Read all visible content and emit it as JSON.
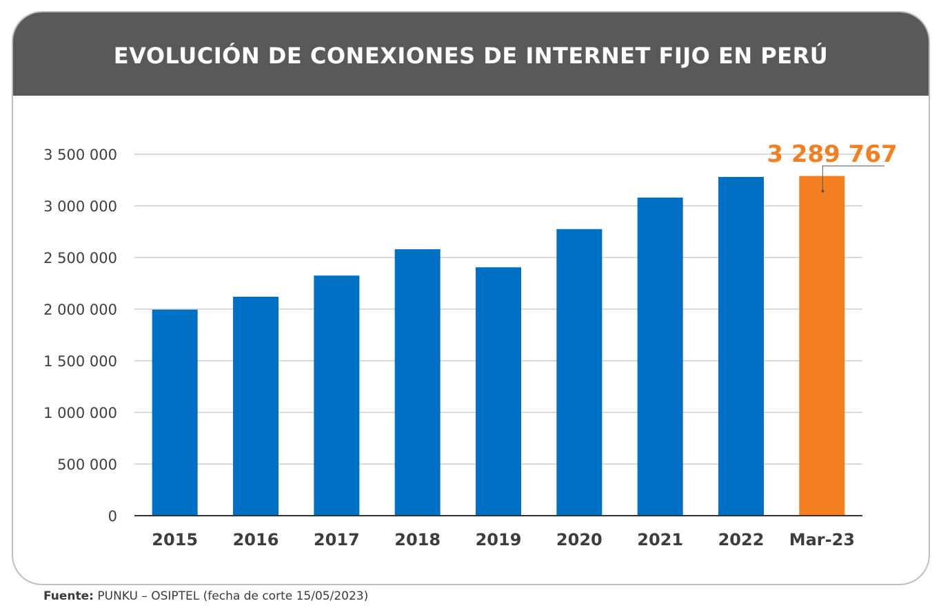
{
  "header": {
    "title": "EVOLUCIÓN DE CONEXIONES DE INTERNET FIJO EN PERÚ"
  },
  "source": {
    "label": "Fuente:",
    "text": " PUNKU – OSIPTEL (fecha de corte 15/05/2023)"
  },
  "colors": {
    "header_bg": "#5a5859",
    "bar": "#0070c4",
    "highlight_bar": "#f47f20",
    "grid": "#d9d9d9",
    "axis": "#333333"
  },
  "chart_data": {
    "type": "bar",
    "title": "EVOLUCIÓN DE CONEXIONES DE INTERNET FIJO EN PERÚ",
    "xlabel": "",
    "ylabel": "",
    "categories": [
      "2015",
      "2016",
      "2017",
      "2018",
      "2019",
      "2020",
      "2021",
      "2022",
      "Mar-23"
    ],
    "values": [
      1995000,
      2120000,
      2325000,
      2580000,
      2405000,
      2775000,
      3080000,
      3280000,
      3289767
    ],
    "highlight_index": 8,
    "ylim": [
      0,
      3500000
    ],
    "yticks": [
      0,
      500000,
      1000000,
      1500000,
      2000000,
      2500000,
      3000000,
      3500000
    ],
    "ytick_labels": [
      "0",
      "500 000",
      "1 000 000",
      "1 500 000",
      "2 000 000",
      "2 500 000",
      "3 000 000",
      "3 500 000"
    ],
    "grid": true,
    "legend": "none",
    "annotation": {
      "category": "Mar-23",
      "text": "3 289 767"
    }
  }
}
